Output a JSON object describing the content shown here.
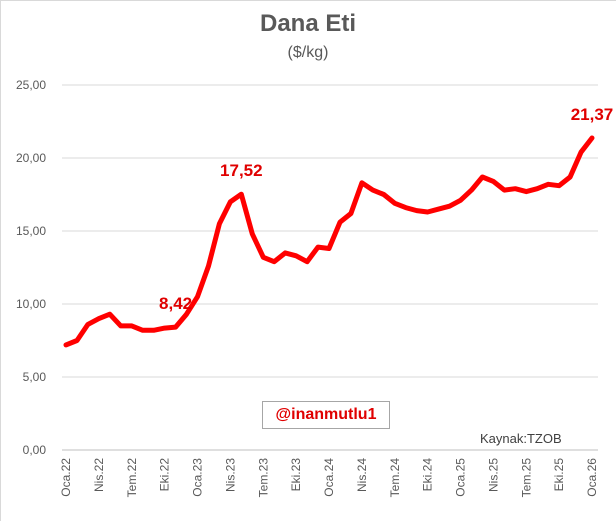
{
  "chart_data": {
    "type": "line",
    "title": "Dana Eti",
    "subtitle": "($/kg)",
    "ylim": [
      0,
      25
    ],
    "yticks": [
      0,
      5,
      10,
      15,
      20,
      25
    ],
    "ytick_labels": [
      "0,00",
      "5,00",
      "10,00",
      "15,00",
      "20,00",
      "25,00"
    ],
    "xtick_labels": [
      "Oca.22",
      "Nis.22",
      "Tem.22",
      "Eki.22",
      "Oca.23",
      "Nis.23",
      "Tem.23",
      "Eki.23",
      "Oca.24",
      "Nis.24",
      "Tem.24",
      "Eki.24",
      "Oca.25",
      "Nis.25",
      "Tem.25",
      "Eki.25",
      "Oca.26"
    ],
    "grid": true,
    "series": [
      {
        "color": "#ff0000",
        "values": [
          7.2,
          7.5,
          8.6,
          9.0,
          9.3,
          8.5,
          8.5,
          8.2,
          8.2,
          8.35,
          8.42,
          9.3,
          10.5,
          12.6,
          15.5,
          17.0,
          17.52,
          14.8,
          13.2,
          12.9,
          13.5,
          13.3,
          12.9,
          13.9,
          13.8,
          15.6,
          16.2,
          18.3,
          17.8,
          17.5,
          16.9,
          16.6,
          16.4,
          16.3,
          16.5,
          16.7,
          17.1,
          17.8,
          18.7,
          18.4,
          17.8,
          17.9,
          17.7,
          17.9,
          18.2,
          18.1,
          18.7,
          20.4,
          21.37
        ]
      }
    ],
    "data_labels": [
      {
        "index": 10,
        "text": "8,42"
      },
      {
        "index": 16,
        "text": "17,52"
      },
      {
        "index": 48,
        "text": "21,37"
      }
    ]
  },
  "watermark": "@inanmutlu1",
  "source": "Kaynak:TZOB"
}
